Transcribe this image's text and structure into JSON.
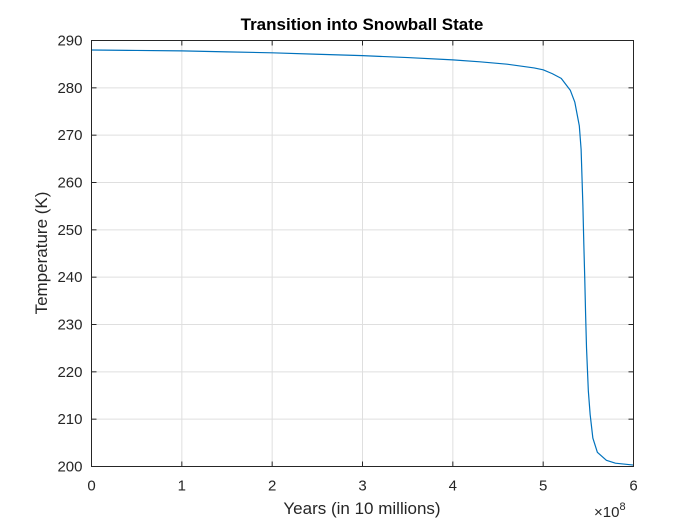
{
  "chart_data": {
    "type": "line",
    "title": "Transition into Snowball State",
    "xlabel": "Years (in 10 millions)",
    "ylabel": "Temperature (K)",
    "x_exponent": "×10",
    "x_exponent_power": "8",
    "xlim": [
      0,
      6
    ],
    "ylim": [
      200,
      290
    ],
    "xticks": [
      0,
      1,
      2,
      3,
      4,
      5,
      6
    ],
    "yticks": [
      200,
      210,
      220,
      230,
      240,
      250,
      260,
      270,
      280,
      290
    ],
    "grid": true,
    "line_color": "#0072bd",
    "series": [
      {
        "x": [
          0,
          0.5,
          1,
          1.5,
          2,
          2.5,
          3,
          3.5,
          4,
          4.3,
          4.6,
          4.9,
          5.0,
          5.1,
          5.2,
          5.3,
          5.35,
          5.4,
          5.42,
          5.44,
          5.45,
          5.46,
          5.47,
          5.48,
          5.5,
          5.52,
          5.55,
          5.6,
          5.7,
          5.8,
          6.0
        ],
        "y": [
          288.0,
          287.9,
          287.8,
          287.6,
          287.4,
          287.1,
          286.8,
          286.4,
          285.9,
          285.5,
          285.0,
          284.2,
          283.8,
          283.0,
          282.0,
          279.5,
          277.0,
          272.0,
          267.0,
          255.0,
          247.0,
          240.0,
          232.0,
          225.0,
          216.0,
          211.0,
          206.0,
          203.0,
          201.3,
          200.7,
          200.3
        ]
      }
    ]
  }
}
